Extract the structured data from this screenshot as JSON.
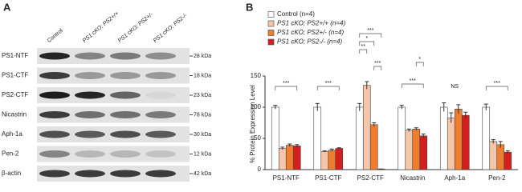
{
  "panel_a": {
    "label": "A",
    "columns": [
      "Control",
      "PS1 cKO; PS2+/+",
      "PS1 cKO; PS2+/-",
      "PS1 cKO; PS2-/-"
    ],
    "rows": [
      {
        "protein": "PS1-NTF",
        "size": "28 kDa"
      },
      {
        "protein": "PS1-CTF",
        "size": "18 kDa"
      },
      {
        "protein": "PS2-CTF",
        "size": "23 kDa"
      },
      {
        "protein": "Nicastrin",
        "size": "78 kDa"
      },
      {
        "protein": "Aph-1a",
        "size": "30 kDa"
      },
      {
        "protein": "Pen-2",
        "size": "12 kDa"
      },
      {
        "protein": "β-actin",
        "size": "42 kDa"
      }
    ]
  },
  "chart_data": {
    "type": "bar",
    "label": "B",
    "y_label": "% Protein Expression Level",
    "categories": [
      "PS1-NTF",
      "PS1-CTF",
      "PS2-CTF",
      "Nicastrin",
      "Aph-1a",
      "Pen-2"
    ],
    "series": [
      {
        "name": "Control (n=4)",
        "color": "#ffffff",
        "values": [
          100,
          100,
          100,
          100,
          100,
          100
        ],
        "errors": [
          3,
          6,
          6,
          3,
          7,
          5
        ]
      },
      {
        "name": "PS1 cKO; PS2+/+ (n=4)",
        "color": "#f6c6aa",
        "values": [
          34,
          29,
          135,
          63,
          83,
          45
        ],
        "errors": [
          2,
          1,
          6,
          2,
          8,
          3
        ]
      },
      {
        "name": "PS1 cKO; PS2+/- (n=4)",
        "color": "#f07d2e",
        "values": [
          39,
          31,
          72,
          65,
          97,
          40
        ],
        "errors": [
          2,
          2,
          3,
          2,
          7,
          5
        ]
      },
      {
        "name": "PS1 cKO; PS2-/- (n=4)",
        "color": "#d41f1f",
        "values": [
          38,
          34,
          1,
          54,
          87,
          28
        ],
        "errors": [
          2,
          1,
          0,
          3,
          5,
          2
        ]
      }
    ],
    "ylim": [
      0,
      150
    ],
    "yticks": [
      0,
      50,
      100,
      150
    ],
    "annotations": [
      "***",
      "***",
      "***",
      "*",
      "**",
      "***",
      "***",
      "*",
      "NS",
      "***"
    ]
  }
}
